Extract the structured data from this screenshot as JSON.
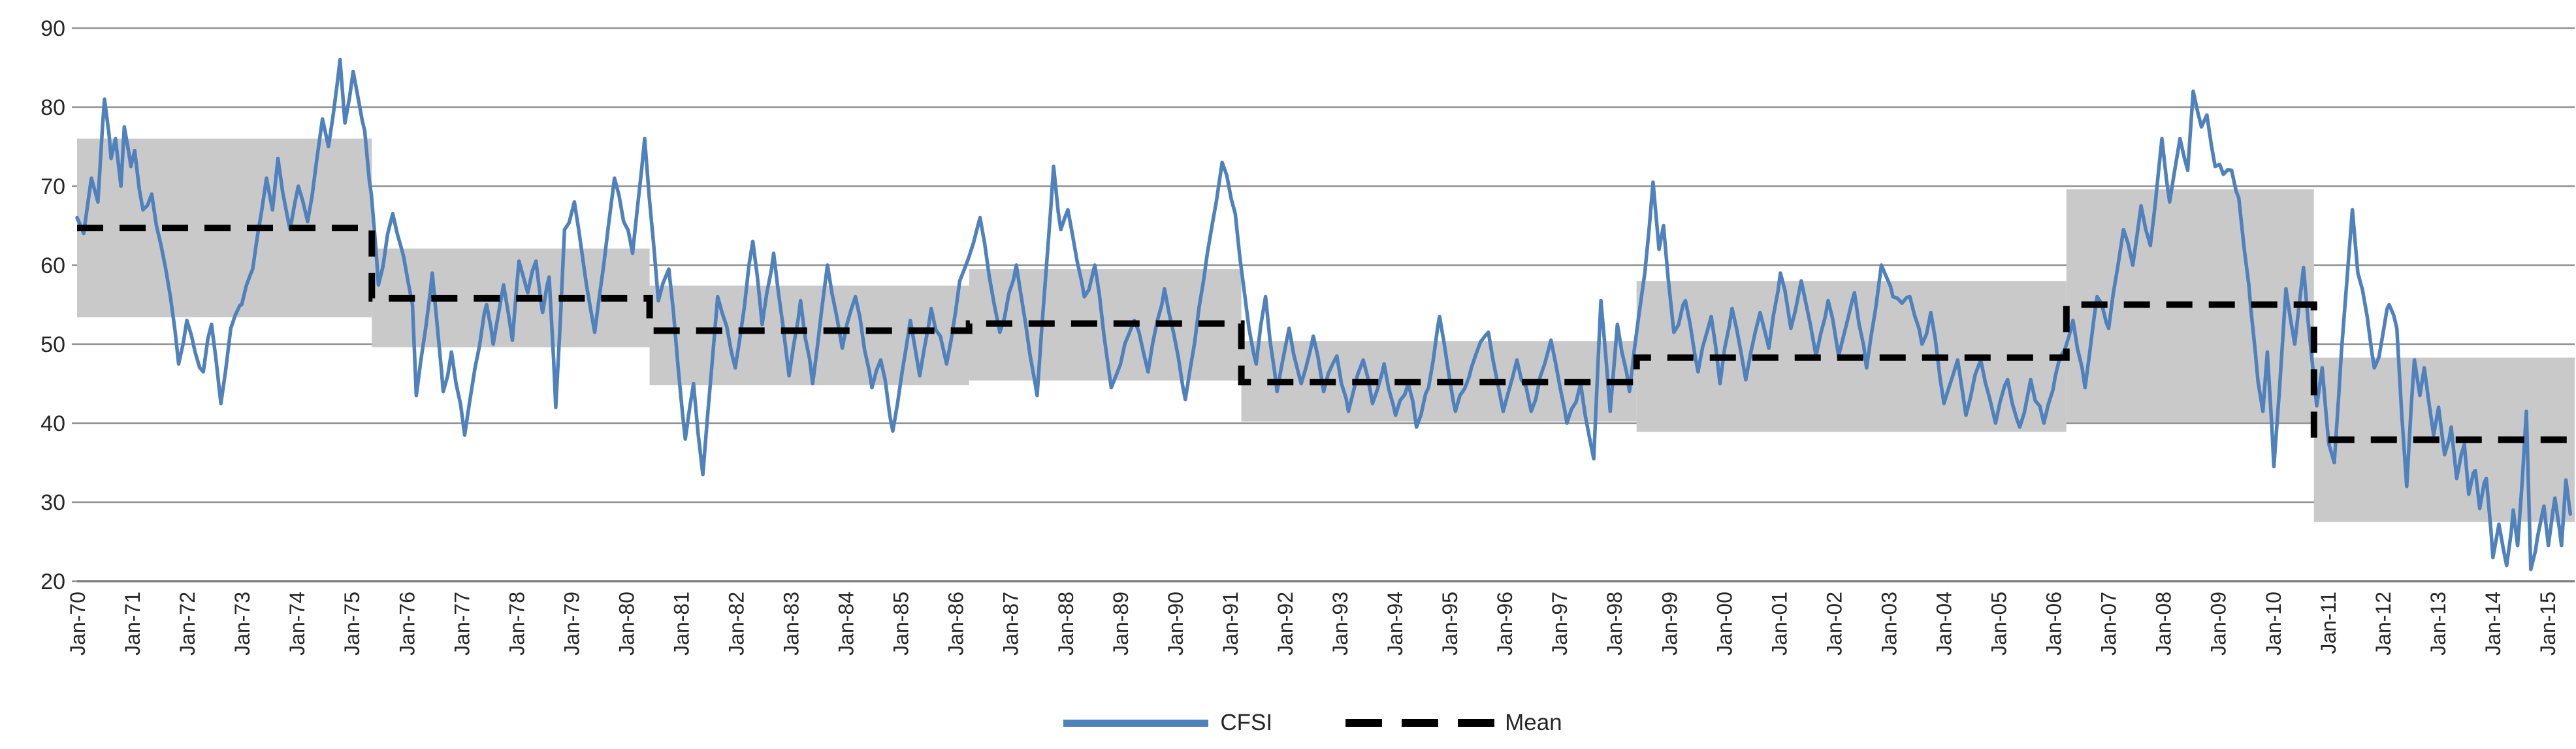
{
  "chart_data": {
    "type": "line",
    "legend_position": "bottom-center",
    "grid": "horizontal",
    "colors": {
      "cfsi_line": "#4F81BD",
      "mean_line": "#000000",
      "band": "#C9C9C9",
      "gridline": "#919191",
      "axis_line": "#7F7F7F",
      "tick_label": "#262626",
      "background": "#FFFFFF"
    },
    "x_axis": {
      "min": 1970.0,
      "max": 2015.5,
      "labels": [
        "Jan-70",
        "Jan-71",
        "Jan-72",
        "Jan-73",
        "Jan-74",
        "Jan-75",
        "Jan-76",
        "Jan-77",
        "Jan-78",
        "Jan-79",
        "Jan-80",
        "Jan-81",
        "Jan-82",
        "Jan-83",
        "Jan-84",
        "Jan-85",
        "Jan-86",
        "Jan-87",
        "Jan-88",
        "Jan-89",
        "Jan-90",
        "Jan-91",
        "Jan-92",
        "Jan-93",
        "Jan-94",
        "Jan-95",
        "Jan-96",
        "Jan-97",
        "Jan-98",
        "Jan-99",
        "Jan-00",
        "Jan-01",
        "Jan-02",
        "Jan-03",
        "Jan-04",
        "Jan-05",
        "Jan-06",
        "Jan-07",
        "Jan-08",
        "Jan-09",
        "Jan-10",
        "Jan-11",
        "Jan-12",
        "Jan-13",
        "Jan-14",
        "Jan-15"
      ]
    },
    "y_axis": {
      "min": 20,
      "max": 90,
      "step": 10,
      "ticks": [
        90,
        80,
        70,
        60,
        50,
        40,
        30,
        20
      ]
    },
    "series": [
      {
        "name": "CFSI",
        "color": "#4F81BD",
        "points": [
          [
            1970.0,
            66
          ],
          [
            1970.12,
            64
          ],
          [
            1970.26,
            71
          ],
          [
            1970.38,
            68
          ],
          [
            1970.5,
            81
          ],
          [
            1970.62,
            73.5
          ],
          [
            1970.7,
            76
          ],
          [
            1970.8,
            70
          ],
          [
            1970.86,
            77.5
          ],
          [
            1970.98,
            72.5
          ],
          [
            1971.05,
            74.5
          ],
          [
            1971.2,
            67
          ],
          [
            1971.36,
            69
          ],
          [
            1971.53,
            62.5
          ],
          [
            1971.7,
            56
          ],
          [
            1971.85,
            47.5
          ],
          [
            1972.0,
            53
          ],
          [
            1972.15,
            49
          ],
          [
            1972.3,
            46.5
          ],
          [
            1972.45,
            52.5
          ],
          [
            1972.62,
            42.5
          ],
          [
            1972.8,
            52
          ],
          [
            1973.0,
            55
          ],
          [
            1973.2,
            59.5
          ],
          [
            1973.45,
            71
          ],
          [
            1973.56,
            67
          ],
          [
            1973.66,
            73.5
          ],
          [
            1973.88,
            64.5
          ],
          [
            1974.03,
            70
          ],
          [
            1974.2,
            65.5
          ],
          [
            1974.47,
            78.5
          ],
          [
            1974.58,
            75
          ],
          [
            1974.79,
            86
          ],
          [
            1974.88,
            78
          ],
          [
            1975.03,
            84.5
          ],
          [
            1975.24,
            77
          ],
          [
            1975.36,
            69
          ],
          [
            1975.49,
            57.5
          ],
          [
            1975.75,
            66.5
          ],
          [
            1975.95,
            61
          ],
          [
            1976.11,
            55
          ],
          [
            1976.18,
            43.5
          ],
          [
            1976.35,
            52
          ],
          [
            1976.47,
            59
          ],
          [
            1976.67,
            44
          ],
          [
            1976.82,
            49
          ],
          [
            1977.06,
            38.5
          ],
          [
            1977.25,
            47
          ],
          [
            1977.46,
            55
          ],
          [
            1977.58,
            50
          ],
          [
            1977.77,
            57.5
          ],
          [
            1977.93,
            50.5
          ],
          [
            1978.05,
            60.5
          ],
          [
            1978.21,
            56.5
          ],
          [
            1978.36,
            60.5
          ],
          [
            1978.48,
            54
          ],
          [
            1978.6,
            58.5
          ],
          [
            1978.72,
            42
          ],
          [
            1978.88,
            64.5
          ],
          [
            1979.06,
            68
          ],
          [
            1979.28,
            57.5
          ],
          [
            1979.43,
            51.5
          ],
          [
            1979.79,
            71
          ],
          [
            1980.12,
            61.5
          ],
          [
            1980.34,
            76
          ],
          [
            1980.59,
            55.5
          ],
          [
            1980.78,
            59.5
          ],
          [
            1981.08,
            38
          ],
          [
            1981.23,
            45
          ],
          [
            1981.4,
            33.5
          ],
          [
            1981.67,
            56
          ],
          [
            1981.99,
            47
          ],
          [
            1982.31,
            63
          ],
          [
            1982.48,
            52.5
          ],
          [
            1982.69,
            61.5
          ],
          [
            1982.97,
            46
          ],
          [
            1983.18,
            55.5
          ],
          [
            1983.4,
            45
          ],
          [
            1983.67,
            60
          ],
          [
            1983.94,
            49.5
          ],
          [
            1984.18,
            56
          ],
          [
            1984.48,
            44.5
          ],
          [
            1984.64,
            48
          ],
          [
            1984.86,
            39
          ],
          [
            1985.18,
            53
          ],
          [
            1985.35,
            46
          ],
          [
            1985.56,
            54.5
          ],
          [
            1985.84,
            47.5
          ],
          [
            1986.08,
            58
          ],
          [
            1986.45,
            66
          ],
          [
            1986.81,
            51.5
          ],
          [
            1987.11,
            60
          ],
          [
            1987.49,
            43.5
          ],
          [
            1987.79,
            72.5
          ],
          [
            1987.92,
            64.5
          ],
          [
            1988.05,
            67
          ],
          [
            1988.35,
            56
          ],
          [
            1988.54,
            60
          ],
          [
            1988.84,
            44.5
          ],
          [
            1989.26,
            53
          ],
          [
            1989.51,
            46.5
          ],
          [
            1989.81,
            57
          ],
          [
            1990.19,
            43
          ],
          [
            1990.59,
            61.5
          ],
          [
            1990.86,
            73
          ],
          [
            1991.1,
            66.5
          ],
          [
            1991.35,
            52
          ],
          [
            1991.48,
            47.5
          ],
          [
            1991.65,
            56
          ],
          [
            1991.86,
            44
          ],
          [
            1992.08,
            52
          ],
          [
            1992.3,
            45
          ],
          [
            1992.52,
            51
          ],
          [
            1992.71,
            44
          ],
          [
            1992.95,
            48.5
          ],
          [
            1993.16,
            41.5
          ],
          [
            1993.43,
            48
          ],
          [
            1993.6,
            42.5
          ],
          [
            1993.81,
            47.5
          ],
          [
            1994.02,
            41
          ],
          [
            1994.25,
            45
          ],
          [
            1994.4,
            39.5
          ],
          [
            1994.62,
            44.5
          ],
          [
            1994.82,
            53.5
          ],
          [
            1995.11,
            41.5
          ],
          [
            1995.4,
            47
          ],
          [
            1995.71,
            51.5
          ],
          [
            1995.98,
            41.5
          ],
          [
            1996.23,
            48
          ],
          [
            1996.49,
            41.5
          ],
          [
            1996.85,
            50.5
          ],
          [
            1997.14,
            40
          ],
          [
            1997.39,
            45
          ],
          [
            1997.63,
            35.5
          ],
          [
            1997.76,
            55.5
          ],
          [
            1997.93,
            41.5
          ],
          [
            1998.06,
            52.5
          ],
          [
            1998.28,
            44
          ],
          [
            1998.56,
            59
          ],
          [
            1998.71,
            70.5
          ],
          [
            1998.82,
            62
          ],
          [
            1998.9,
            65
          ],
          [
            1999.09,
            51.5
          ],
          [
            1999.3,
            55.5
          ],
          [
            1999.53,
            46.5
          ],
          [
            1999.77,
            53.5
          ],
          [
            1999.93,
            45
          ],
          [
            2000.15,
            54.5
          ],
          [
            2000.4,
            45.5
          ],
          [
            2000.66,
            54
          ],
          [
            2000.82,
            49.5
          ],
          [
            2001.03,
            59
          ],
          [
            2001.22,
            52
          ],
          [
            2001.41,
            58
          ],
          [
            2001.68,
            48.5
          ],
          [
            2001.9,
            55.5
          ],
          [
            2002.09,
            48.5
          ],
          [
            2002.38,
            56.5
          ],
          [
            2002.6,
            47
          ],
          [
            2002.87,
            60
          ],
          [
            2003.08,
            56
          ],
          [
            2003.39,
            56
          ],
          [
            2003.61,
            50
          ],
          [
            2003.77,
            54
          ],
          [
            2004.01,
            42.5
          ],
          [
            2004.26,
            48
          ],
          [
            2004.41,
            41
          ],
          [
            2004.68,
            48
          ],
          [
            2004.95,
            40
          ],
          [
            2005.17,
            45.5
          ],
          [
            2005.39,
            39.5
          ],
          [
            2005.59,
            45.5
          ],
          [
            2005.83,
            40
          ],
          [
            2006.04,
            46
          ],
          [
            2006.36,
            53
          ],
          [
            2006.58,
            44.5
          ],
          [
            2006.8,
            56
          ],
          [
            2007.01,
            52
          ],
          [
            2007.28,
            64.5
          ],
          [
            2007.45,
            60
          ],
          [
            2007.6,
            67.5
          ],
          [
            2007.77,
            62.5
          ],
          [
            2007.98,
            76
          ],
          [
            2008.12,
            68
          ],
          [
            2008.31,
            76
          ],
          [
            2008.45,
            72
          ],
          [
            2008.55,
            82
          ],
          [
            2008.7,
            77.5
          ],
          [
            2008.8,
            79
          ],
          [
            2008.95,
            72.5
          ],
          [
            2009.1,
            71.5
          ],
          [
            2009.25,
            72
          ],
          [
            2009.38,
            68.5
          ],
          [
            2009.48,
            62
          ],
          [
            2009.6,
            54.5
          ],
          [
            2009.73,
            45.3
          ],
          [
            2009.82,
            41.5
          ],
          [
            2009.9,
            49
          ],
          [
            2010.02,
            34.5
          ],
          [
            2010.12,
            44
          ],
          [
            2010.24,
            57
          ],
          [
            2010.4,
            50
          ],
          [
            2010.56,
            59.7
          ],
          [
            2010.7,
            49
          ],
          [
            2010.8,
            42.2
          ],
          [
            2010.9,
            47
          ],
          [
            2011.02,
            37.4
          ],
          [
            2011.12,
            35
          ],
          [
            2011.25,
            49
          ],
          [
            2011.35,
            58
          ],
          [
            2011.45,
            67
          ],
          [
            2011.55,
            59
          ],
          [
            2011.72,
            53.5
          ],
          [
            2011.85,
            47
          ],
          [
            2012.0,
            51
          ],
          [
            2012.12,
            55
          ],
          [
            2012.26,
            52
          ],
          [
            2012.35,
            41
          ],
          [
            2012.44,
            32
          ],
          [
            2012.58,
            48
          ],
          [
            2012.68,
            43.5
          ],
          [
            2012.76,
            47
          ],
          [
            2012.93,
            38.5
          ],
          [
            2013.02,
            42
          ],
          [
            2013.13,
            36
          ],
          [
            2013.25,
            39.5
          ],
          [
            2013.35,
            33
          ],
          [
            2013.49,
            37.3
          ],
          [
            2013.57,
            31
          ],
          [
            2013.69,
            34
          ],
          [
            2013.77,
            29.2
          ],
          [
            2013.89,
            33
          ],
          [
            2014.01,
            23
          ],
          [
            2014.12,
            27.2
          ],
          [
            2014.26,
            22
          ],
          [
            2014.38,
            29
          ],
          [
            2014.46,
            24.5
          ],
          [
            2014.62,
            41.5
          ],
          [
            2014.7,
            21.5
          ],
          [
            2014.82,
            25.5
          ],
          [
            2014.94,
            29.5
          ],
          [
            2015.02,
            24.5
          ],
          [
            2015.14,
            30.5
          ],
          [
            2015.26,
            24.5
          ],
          [
            2015.34,
            32.8
          ],
          [
            2015.42,
            28.5
          ]
        ]
      },
      {
        "name": "Mean",
        "color": "#000000",
        "style": "dashed-step",
        "regimes": [
          {
            "from": 1970.0,
            "to": 1975.37,
            "mean": 64.7,
            "band_low": 53.4,
            "band_high": 76.0
          },
          {
            "from": 1975.37,
            "to": 1980.43,
            "mean": 55.8,
            "band_low": 49.6,
            "band_high": 62.1
          },
          {
            "from": 1980.43,
            "to": 1986.25,
            "mean": 51.7,
            "band_low": 44.8,
            "band_high": 57.4
          },
          {
            "from": 1986.25,
            "to": 1991.21,
            "mean": 52.6,
            "band_low": 45.4,
            "band_high": 59.5
          },
          {
            "from": 1991.21,
            "to": 1998.41,
            "mean": 45.2,
            "band_low": 40.2,
            "band_high": 50.4
          },
          {
            "from": 1998.41,
            "to": 2006.24,
            "mean": 48.3,
            "band_low": 38.9,
            "band_high": 58.0
          },
          {
            "from": 2006.24,
            "to": 2010.75,
            "mean": 55.0,
            "band_low": 40.1,
            "band_high": 69.6
          },
          {
            "from": 2010.75,
            "to": 2015.5,
            "mean": 37.9,
            "band_low": 27.5,
            "band_high": 48.3
          }
        ]
      }
    ]
  }
}
